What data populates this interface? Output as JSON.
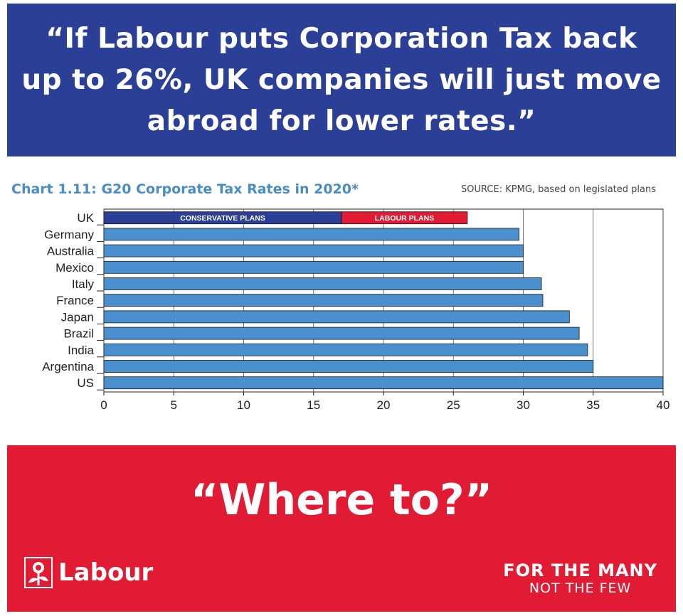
{
  "header": {
    "quote": "“If Labour puts Corporation Tax back up to 26%, UK companies will just move abroad for lower rates.”"
  },
  "chart_data": {
    "type": "bar",
    "orientation": "horizontal",
    "title": "Chart 1.11: G20 Corporate Tax Rates in 2020*",
    "source": "SOURCE: KPMG, based on legislated plans",
    "categories": [
      "UK",
      "Germany",
      "Australia",
      "Mexico",
      "Italy",
      "France",
      "Japan",
      "Brazil",
      "India",
      "Argentina",
      "US"
    ],
    "values": [
      17,
      29.7,
      30,
      30,
      31.3,
      31.4,
      33.3,
      34,
      34.6,
      35,
      40
    ],
    "uk_segments": [
      {
        "label": "CONSERVATIVE PLANS",
        "start": 0,
        "end": 17,
        "color": "#2b3f96"
      },
      {
        "label": "LABOUR PLANS",
        "start": 17,
        "end": 26,
        "color": "#e11b33"
      }
    ],
    "xticks": [
      0,
      5,
      10,
      15,
      20,
      25,
      30,
      35,
      40
    ],
    "xlim": [
      0,
      40
    ],
    "grid": "vertical",
    "bar_color": "#4a90cf",
    "xlabel": "",
    "ylabel": ""
  },
  "footer": {
    "quote": "“Where to?”",
    "logo_text": "Labour",
    "slogan_main": "FOR THE MANY",
    "slogan_sub": "NOT THE FEW",
    "brand_red": "#e11b33",
    "brand_blue": "#2b3f96"
  }
}
